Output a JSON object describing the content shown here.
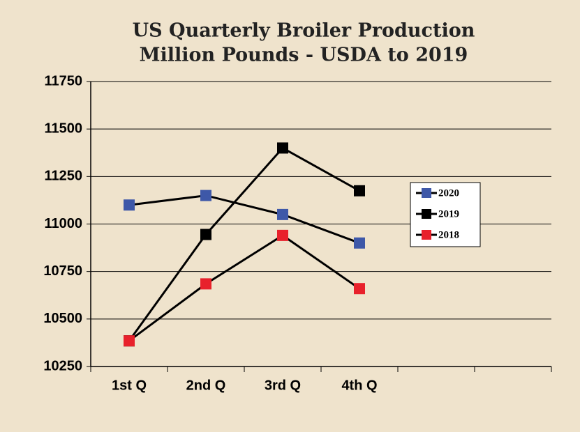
{
  "chart_data": {
    "type": "line",
    "title": "US Quarterly Broiler Production",
    "subtitle": "Million Pounds - USDA to 2019",
    "categories": [
      "1st Q",
      "2nd Q",
      "3rd Q",
      "4th Q",
      null,
      null
    ],
    "series": [
      {
        "name": "2020",
        "color": "#3e58a8",
        "values": [
          11100,
          11150,
          11050,
          10900,
          null,
          null
        ]
      },
      {
        "name": "2019",
        "color": "#000000",
        "values": [
          10385,
          10945,
          11400,
          11175,
          null,
          null
        ]
      },
      {
        "name": "2018",
        "color": "#e8212b",
        "values": [
          10385,
          10685,
          10940,
          10660,
          null,
          null
        ]
      }
    ],
    "ylim": [
      10250,
      11750
    ],
    "yticks": [
      10250,
      10500,
      10750,
      11000,
      11250,
      11500,
      11750
    ],
    "grid": true,
    "legend": "right"
  }
}
